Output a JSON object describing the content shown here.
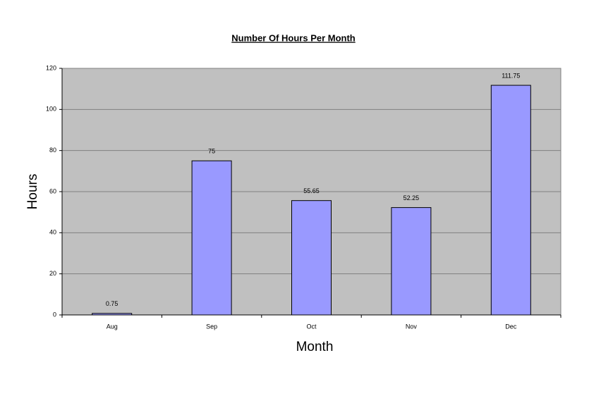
{
  "chart_data": {
    "type": "bar",
    "title": "Number Of Hours Per Month",
    "x_label": "Month",
    "y_label": "Hours",
    "categories": [
      "Aug",
      "Sep",
      "Oct",
      "Nov",
      "Dec"
    ],
    "values": [
      0.75,
      75,
      55.65,
      52.25,
      111.75
    ],
    "color": "#9999ff",
    "ylim": [
      0,
      120
    ],
    "yticks": [
      0,
      20,
      40,
      60,
      80,
      100,
      120
    ],
    "grid": true
  }
}
